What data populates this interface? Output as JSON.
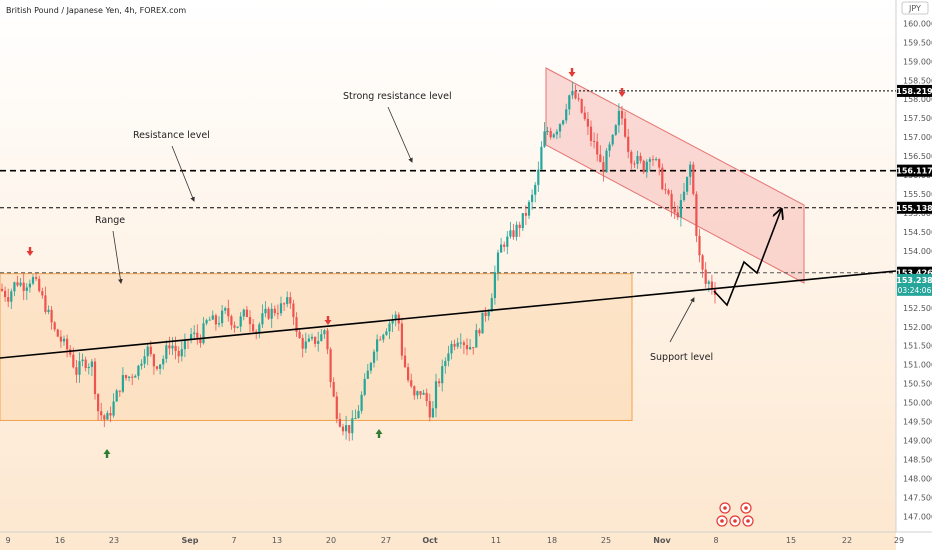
{
  "header": {
    "title": "British Pound / Japanese Yen, 4h, FOREX.com",
    "currency_badge": "JPY"
  },
  "colors": {
    "background_top": "#ffffff",
    "background_bottom": "#fde7cf",
    "up_candle": "#26a69a",
    "down_candle": "#ef5350",
    "range_fill": "#fbd7ae",
    "range_stroke": "#f1a24b",
    "channel_fill": "#f6b6b2",
    "channel_stroke": "#e57373",
    "trendline": "#000000",
    "arrow_down": "#e53935",
    "arrow_up": "#2e7d32",
    "price_label_bg": "#000000",
    "current_price_bg": "#26a69a"
  },
  "chart_data": {
    "type": "candlestick",
    "title": "British Pound / Japanese Yen, 4h, FOREX.com",
    "y_ticks": [
      147.0,
      147.5,
      148.0,
      148.5,
      149.0,
      149.5,
      150.0,
      150.5,
      151.0,
      151.5,
      152.0,
      152.5,
      153.0,
      153.5,
      154.0,
      154.5,
      155.0,
      155.5,
      156.0,
      156.5,
      157.0,
      157.5,
      158.0,
      158.5,
      159.0,
      159.5,
      160.0
    ],
    "y_tick_labels": [
      "147.000",
      "147.500",
      "148.000",
      "148.500",
      "149.000",
      "149.500",
      "150.000",
      "150.500",
      "151.000",
      "151.500",
      "152.000",
      "152.500",
      "153.000",
      "153.500",
      "154.000",
      "154.500",
      "155.000",
      "155.500",
      "156.000",
      "156.500",
      "157.000",
      "157.500",
      "158.000",
      "158.500",
      "159.000",
      "159.500",
      "160.000"
    ],
    "ylim": [
      146.8,
      160.3
    ],
    "x_ticks": [
      {
        "label": "9",
        "bold": false
      },
      {
        "label": "16",
        "bold": false
      },
      {
        "label": "23",
        "bold": false
      },
      {
        "label": "Sep",
        "bold": true
      },
      {
        "label": "7",
        "bold": false
      },
      {
        "label": "13",
        "bold": false
      },
      {
        "label": "20",
        "bold": false
      },
      {
        "label": "27",
        "bold": false
      },
      {
        "label": "Oct",
        "bold": true
      },
      {
        "label": "11",
        "bold": false
      },
      {
        "label": "18",
        "bold": false
      },
      {
        "label": "25",
        "bold": false
      },
      {
        "label": "Nov",
        "bold": true
      },
      {
        "label": "8",
        "bold": false
      },
      {
        "label": "15",
        "bold": false
      },
      {
        "label": "22",
        "bold": false
      },
      {
        "label": "29",
        "bold": false
      }
    ],
    "price_keypoints": [
      [
        0,
        153.0
      ],
      [
        8,
        152.8
      ],
      [
        16,
        153.2
      ],
      [
        24,
        153.1
      ],
      [
        32,
        153.3
      ],
      [
        38,
        153.0
      ],
      [
        46,
        152.5
      ],
      [
        54,
        151.9
      ],
      [
        62,
        151.6
      ],
      [
        70,
        151.3
      ],
      [
        76,
        150.8
      ],
      [
        84,
        151.1
      ],
      [
        92,
        151.0
      ],
      [
        98,
        149.8
      ],
      [
        106,
        149.5
      ],
      [
        114,
        150.0
      ],
      [
        122,
        150.6
      ],
      [
        130,
        150.7
      ],
      [
        138,
        150.9
      ],
      [
        146,
        151.5
      ],
      [
        154,
        151.0
      ],
      [
        162,
        151.1
      ],
      [
        170,
        151.6
      ],
      [
        180,
        151.2
      ],
      [
        190,
        151.8
      ],
      [
        200,
        151.7
      ],
      [
        208,
        152.2
      ],
      [
        216,
        152.1
      ],
      [
        226,
        152.4
      ],
      [
        236,
        152.0
      ],
      [
        246,
        152.4
      ],
      [
        256,
        151.9
      ],
      [
        264,
        152.3
      ],
      [
        272,
        152.4
      ],
      [
        280,
        152.5
      ],
      [
        286,
        152.6
      ],
      [
        292,
        152.7
      ],
      [
        296,
        151.8
      ],
      [
        304,
        151.5
      ],
      [
        312,
        151.6
      ],
      [
        320,
        151.7
      ],
      [
        326,
        152.0
      ],
      [
        330,
        150.6
      ],
      [
        336,
        149.8
      ],
      [
        342,
        149.4
      ],
      [
        350,
        149.3
      ],
      [
        356,
        149.6
      ],
      [
        362,
        150.2
      ],
      [
        368,
        150.8
      ],
      [
        374,
        151.5
      ],
      [
        380,
        151.8
      ],
      [
        386,
        152.0
      ],
      [
        392,
        152.2
      ],
      [
        398,
        152.3
      ],
      [
        402,
        151.3
      ],
      [
        408,
        150.6
      ],
      [
        414,
        150.1
      ],
      [
        420,
        150.3
      ],
      [
        426,
        150.1
      ],
      [
        432,
        149.6
      ],
      [
        436,
        150.4
      ],
      [
        442,
        150.8
      ],
      [
        448,
        151.4
      ],
      [
        454,
        151.6
      ],
      [
        460,
        151.8
      ],
      [
        466,
        151.5
      ],
      [
        472,
        151.5
      ],
      [
        478,
        151.9
      ],
      [
        484,
        152.3
      ],
      [
        490,
        152.6
      ],
      [
        496,
        153.6
      ],
      [
        502,
        154.2
      ],
      [
        508,
        154.3
      ],
      [
        514,
        154.5
      ],
      [
        520,
        154.7
      ],
      [
        526,
        155.0
      ],
      [
        532,
        155.4
      ],
      [
        538,
        156.0
      ],
      [
        542,
        156.8
      ],
      [
        546,
        157.2
      ],
      [
        552,
        157.1
      ],
      [
        558,
        157.3
      ],
      [
        564,
        157.6
      ],
      [
        568,
        158.1
      ],
      [
        574,
        158.1
      ],
      [
        578,
        157.9
      ],
      [
        584,
        157.5
      ],
      [
        590,
        157.0
      ],
      [
        596,
        156.7
      ],
      [
        602,
        156.1
      ],
      [
        608,
        156.6
      ],
      [
        614,
        157.0
      ],
      [
        620,
        157.7
      ],
      [
        624,
        157.3
      ],
      [
        630,
        156.5
      ],
      [
        636,
        156.4
      ],
      [
        644,
        156.2
      ],
      [
        650,
        156.6
      ],
      [
        656,
        156.3
      ],
      [
        662,
        155.8
      ],
      [
        668,
        155.4
      ],
      [
        674,
        154.9
      ],
      [
        680,
        155.1
      ],
      [
        686,
        155.7
      ],
      [
        690,
        156.3
      ],
      [
        694,
        155.3
      ],
      [
        698,
        154.0
      ],
      [
        702,
        153.5
      ],
      [
        706,
        153.1
      ],
      [
        710,
        153.2
      ],
      [
        714,
        152.9
      ],
      [
        718,
        153.24
      ]
    ],
    "price_levels": [
      {
        "value": 158.219,
        "label": "158.219",
        "style": "dotted"
      },
      {
        "value": 156.117,
        "label": "156.117",
        "style": "dashed"
      },
      {
        "value": 155.138,
        "label": "155.138",
        "style": "dashed"
      },
      {
        "value": 153.426,
        "label": "153.426",
        "style": "dashed"
      }
    ],
    "current_price": {
      "value": 153.238,
      "label": "153.238",
      "countdown": "03:24:06"
    },
    "range_box": {
      "top": 153.4,
      "bottom": 149.53
    },
    "channel_top_line": {
      "from": [
        156.0,
        158.6
      ],
      "to": [
        160.0,
        155.2
      ]
    },
    "trendline_slope_note": "support",
    "annotations": [
      {
        "text": "Range"
      },
      {
        "text": "Resistance level"
      },
      {
        "text": "Strong resistance level"
      },
      {
        "text": "Support level"
      }
    ],
    "grid": false,
    "legend": "none"
  }
}
